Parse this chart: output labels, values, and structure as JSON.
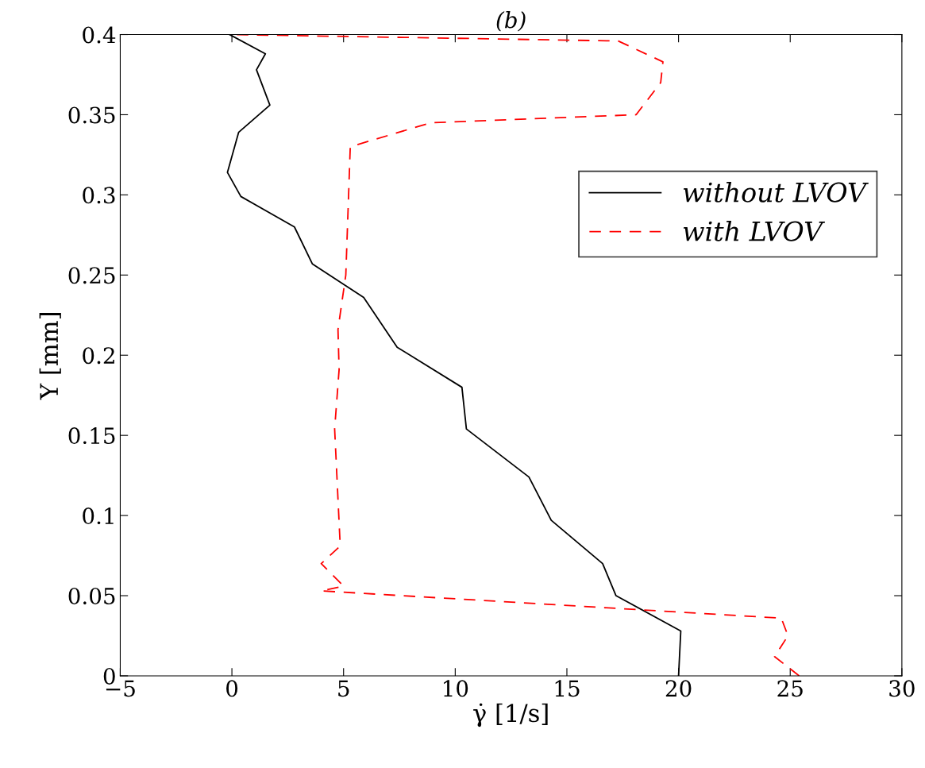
{
  "chart_data": {
    "type": "line",
    "title": "(b)",
    "xlabel": "γ̇ [1/s]",
    "ylabel": "Y [mm]",
    "xlim": [
      -5,
      30
    ],
    "xticks": [
      {
        "value": -5,
        "label": "−5"
      },
      0,
      5,
      10,
      15,
      20,
      25,
      30
    ],
    "ylim": [
      0,
      0.4
    ],
    "yticks": [
      0,
      0.05,
      0.1,
      0.15,
      0.2,
      0.25,
      0.3,
      0.35,
      0.4
    ],
    "grid": false,
    "legend": "right",
    "marker": "none",
    "series": [
      {
        "name": "without LVOV",
        "color": "#000000",
        "line_style": "solid",
        "x": [
          20.0,
          20.1,
          17.2,
          16.6,
          14.3,
          13.3,
          10.5,
          10.3,
          7.4,
          5.9,
          3.6,
          2.8,
          0.4,
          -0.2,
          0.3,
          1.7,
          1.1,
          1.5,
          -0.1
        ],
        "values": [
          0,
          0.028,
          0.05,
          0.07,
          0.097,
          0.124,
          0.154,
          0.18,
          0.205,
          0.236,
          0.257,
          0.28,
          0.299,
          0.314,
          0.339,
          0.356,
          0.378,
          0.388,
          0.4
        ]
      },
      {
        "name": "with LVOV",
        "color": "#ff0000",
        "line_style": "dashed",
        "x": [
          25.4,
          24.3,
          24.9,
          24.6,
          4.0,
          5.0,
          4.0,
          4.85,
          4.6,
          4.8,
          4.75,
          5.1,
          5.3,
          8.9,
          18.1,
          19.2,
          19.3,
          17.3,
          0.0
        ],
        "values": [
          0,
          0.012,
          0.025,
          0.036,
          0.053,
          0.056,
          0.07,
          0.081,
          0.154,
          0.191,
          0.216,
          0.25,
          0.33,
          0.345,
          0.35,
          0.37,
          0.383,
          0.396,
          0.4
        ]
      }
    ]
  }
}
